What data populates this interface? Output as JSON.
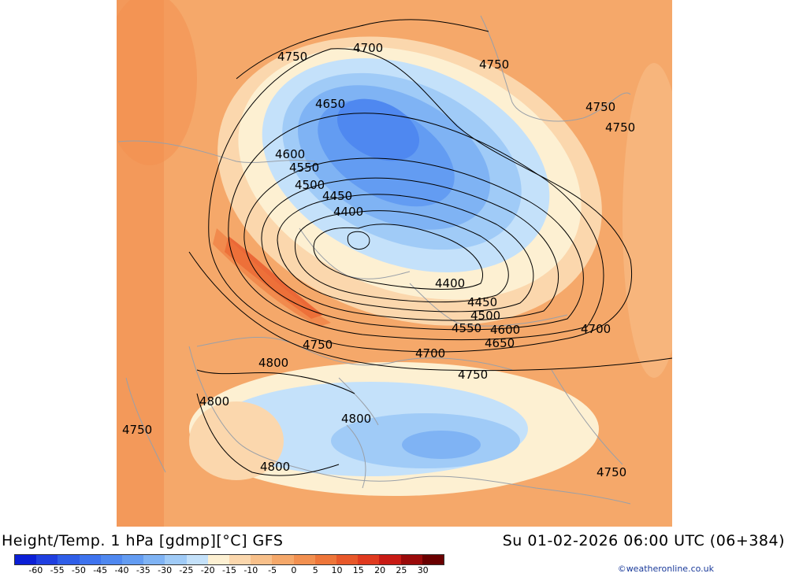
{
  "title": "Height/Temp. 1 hPa [gdmp][°C] GFS",
  "valid_time": "Su 01-02-2026 06:00 UTC (06+384)",
  "credit": "©weatheronline.co.uk",
  "colors": {
    "background_warm": "#f5a86a",
    "land_outline": "#9aa0a8",
    "contour": "#000000"
  },
  "legend": {
    "ticks": [
      "-60",
      "-55",
      "-50",
      "-45",
      "-40",
      "-35",
      "-30",
      "-25",
      "-20",
      "-15",
      "-10",
      "-5",
      "0",
      "5",
      "10",
      "15",
      "20",
      "25",
      "30"
    ],
    "colors": [
      "#0b1fd6",
      "#1f3fe0",
      "#2f5ee8",
      "#3e73ee",
      "#4f88f0",
      "#639cf2",
      "#7fb3f4",
      "#a0cbf7",
      "#c4e1fa",
      "#fdf0d2",
      "#fbd7ad",
      "#f8c08a",
      "#f5a86a",
      "#f29050",
      "#ee763a",
      "#e8582a",
      "#e03a1f",
      "#c81a14",
      "#9a0a0a",
      "#6a0000"
    ]
  },
  "contour_labels": {
    "c4750_nw": "4750",
    "c4700_n": "4700",
    "c4750_ne": "4750",
    "c4750_e1": "4750",
    "c4750_e2": "4750",
    "c4650_n": "4650",
    "c4600_w": "4600",
    "c4550_w": "4550",
    "c4500_w": "4500",
    "c4450_w": "4450",
    "c4400_w": "4400",
    "c4400_e": "4400",
    "c4450_e": "4450",
    "c4500_e": "4500",
    "c4550_e": "4550",
    "c4600_e": "4600",
    "c4650_e": "4650",
    "c4700_e": "4700",
    "c4750_s": "4750",
    "c4700_s": "4700",
    "c4800_w": "4800",
    "c4750_se": "4750",
    "c4800_sw": "4800",
    "c4800_c": "4800",
    "c4750_far_w": "4750",
    "c4800_s": "4800",
    "c4750_far_se": "4750"
  }
}
